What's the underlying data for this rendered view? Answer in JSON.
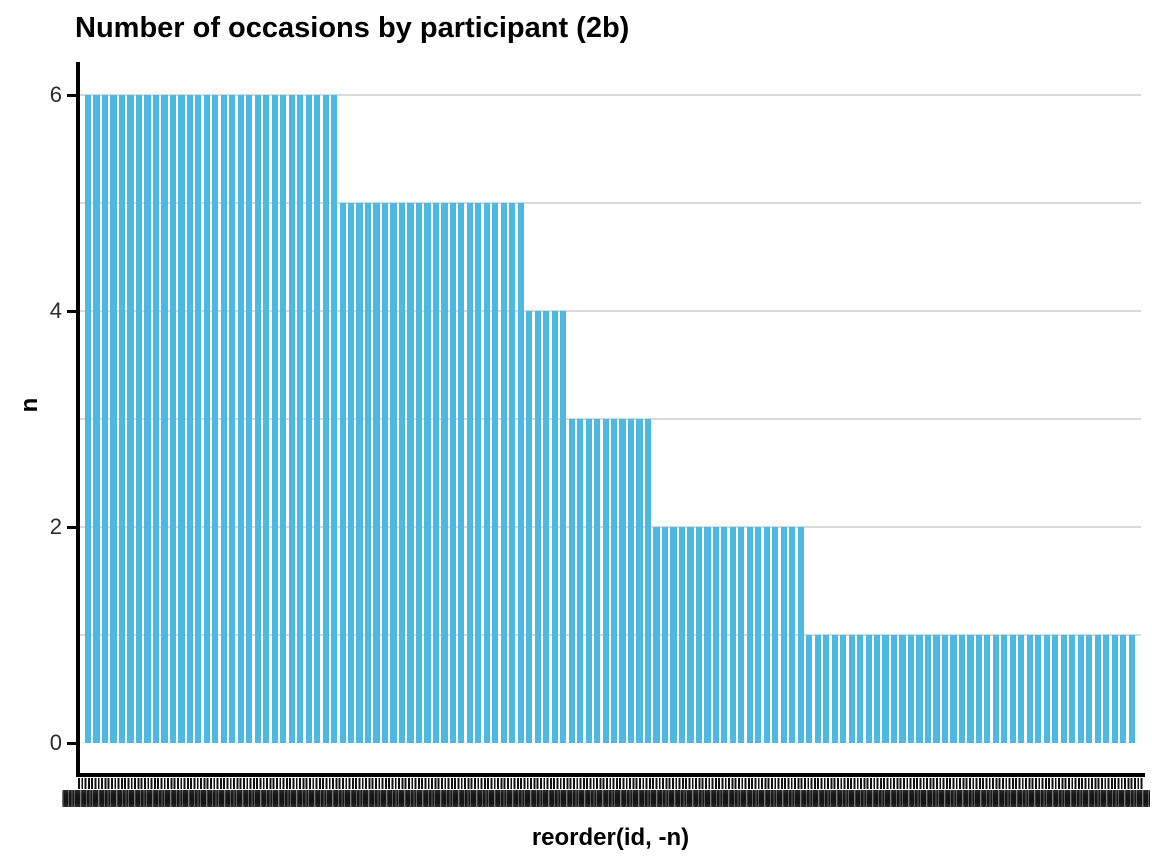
{
  "chart_data": {
    "type": "bar",
    "title": "Number of occasions by participant (2b)",
    "xlabel": "reorder(id, -n)",
    "ylabel": "n",
    "y_ticks": [
      0,
      2,
      4,
      6
    ],
    "ylim": [
      0,
      6.3
    ],
    "gridline_values": [
      1,
      2,
      3,
      4,
      5,
      6
    ],
    "grid_on": true,
    "legend": "none",
    "x_tick_labels_overlapping_illegible": true,
    "bar_color": "#4db8e2",
    "distribution": [
      {
        "n": 6,
        "participants": 30
      },
      {
        "n": 5,
        "participants": 22
      },
      {
        "n": 4,
        "participants": 5
      },
      {
        "n": 3,
        "participants": 10
      },
      {
        "n": 2,
        "participants": 18
      },
      {
        "n": 1,
        "participants": 39
      }
    ],
    "total_bars": 124
  },
  "colors": {
    "bar": "#4db8e2",
    "gridline": "#d9d9d9",
    "axis": "#000000",
    "tick_label": "#2b2b2b",
    "title_text": "#000000",
    "background": "#ffffff"
  }
}
